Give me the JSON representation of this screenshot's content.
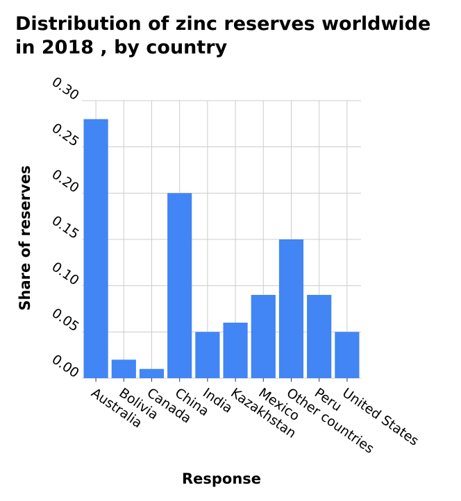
{
  "chart_data": {
    "type": "bar",
    "title": "Distribution of zinc reserves worldwide in 2018 , by country",
    "xlabel": "Response",
    "ylabel": "Share of reserves",
    "categories": [
      "Australia",
      "Bolivia",
      "Canada",
      "China",
      "India",
      "Kazakhstan",
      "Mexico",
      "Other countries",
      "Peru",
      "United States"
    ],
    "values": [
      0.28,
      0.02,
      0.01,
      0.2,
      0.05,
      0.06,
      0.09,
      0.15,
      0.09,
      0.05
    ],
    "ylim": [
      0,
      0.3
    ],
    "yticks": [
      "0.00",
      "0.05",
      "0.10",
      "0.15",
      "0.20",
      "0.25",
      "0.30"
    ],
    "grid": true,
    "bar_color": "#4285f4",
    "grid_color": "#cccccc"
  }
}
